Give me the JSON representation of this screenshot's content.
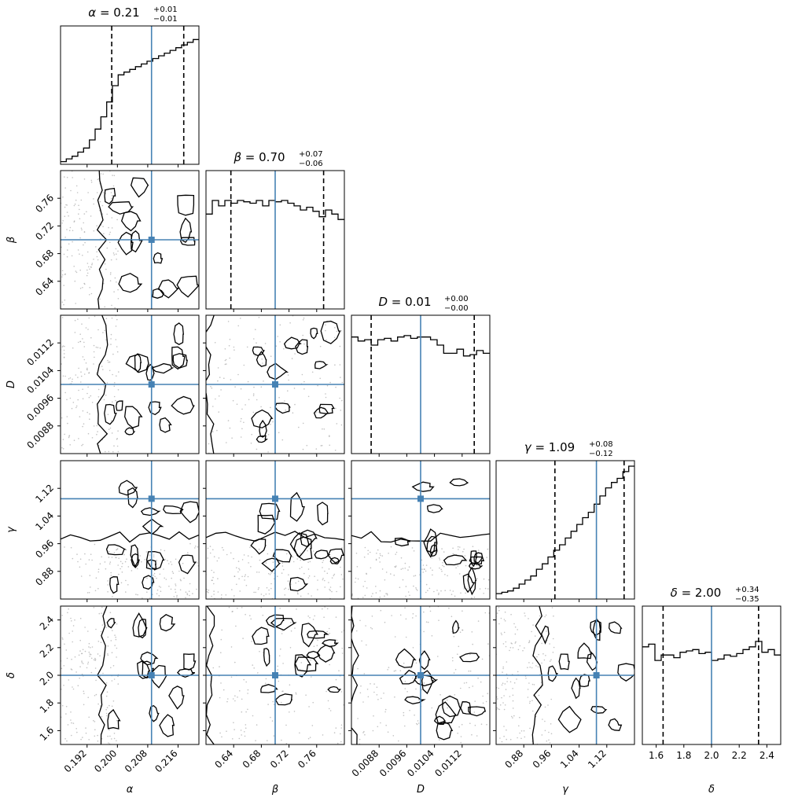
{
  "chart_data": {
    "type": "corner",
    "parameters": [
      {
        "symbol": "α",
        "median": 0.209,
        "best": 0.209,
        "q16": 0.1985,
        "q84": 0.2175,
        "range": [
          0.185,
          0.2215
        ],
        "ticks": [
          "0.192",
          "0.200",
          "0.208",
          "0.216"
        ],
        "tick_values": [
          0.192,
          0.2,
          0.208,
          0.216
        ],
        "title_value": "0.21",
        "title_plus": "+0.01",
        "title_minus": "−0.01"
      },
      {
        "symbol": "β",
        "median": 0.7,
        "best": 0.7,
        "q16": 0.636,
        "q84": 0.77,
        "range": [
          0.6,
          0.8
        ],
        "ticks": [
          "0.64",
          "0.68",
          "0.72",
          "0.76"
        ],
        "tick_values": [
          0.64,
          0.68,
          0.72,
          0.76
        ],
        "title_value": "0.70",
        "title_plus": "+0.07",
        "title_minus": "−0.06"
      },
      {
        "symbol": "D",
        "median": 0.01,
        "best": 0.01,
        "q16": 0.00857,
        "q84": 0.01155,
        "range": [
          0.008,
          0.012
        ],
        "ticks": [
          "0.0088",
          "0.0096",
          "0.0104",
          "0.0112"
        ],
        "tick_values": [
          0.0088,
          0.0096,
          0.0104,
          0.0112
        ],
        "title_value": "0.01",
        "title_plus": "+0.00",
        "title_minus": "−0.00"
      },
      {
        "symbol": "γ",
        "median": 1.09,
        "best": 1.09,
        "q16": 0.97,
        "q84": 1.17,
        "range": [
          0.8,
          1.2
        ],
        "ticks": [
          "0.88",
          "0.96",
          "1.04",
          "1.12"
        ],
        "tick_values": [
          0.88,
          0.96,
          1.04,
          1.12
        ],
        "title_value": "1.09",
        "title_plus": "+0.08",
        "title_minus": "−0.12"
      },
      {
        "symbol": "δ",
        "median": 2.0,
        "best": 2.0,
        "q16": 1.65,
        "q84": 2.34,
        "range": [
          1.5,
          2.5
        ],
        "ticks": [
          "1.6",
          "1.8",
          "2.0",
          "2.2",
          "2.4"
        ],
        "tick_values": [
          1.6,
          1.8,
          2.0,
          2.2,
          2.4
        ],
        "title_value": "2.00",
        "title_plus": "+0.34",
        "title_minus": "−0.35"
      }
    ],
    "histograms": [
      [
        0.02,
        0.04,
        0.06,
        0.09,
        0.12,
        0.18,
        0.26,
        0.35,
        0.46,
        0.58,
        0.66,
        0.68,
        0.7,
        0.72,
        0.74,
        0.76,
        0.78,
        0.8,
        0.82,
        0.84,
        0.86,
        0.88,
        0.9,
        0.92
      ],
      [
        0.7,
        0.8,
        0.76,
        0.8,
        0.78,
        0.8,
        0.79,
        0.78,
        0.8,
        0.76,
        0.8,
        0.79,
        0.8,
        0.78,
        0.76,
        0.73,
        0.75,
        0.72,
        0.68,
        0.73,
        0.7,
        0.66
      ],
      [
        0.86,
        0.83,
        0.84,
        0.8,
        0.84,
        0.85,
        0.83,
        0.86,
        0.87,
        0.85,
        0.86,
        0.86,
        0.84,
        0.8,
        0.74,
        0.74,
        0.77,
        0.72,
        0.73,
        0.76,
        0.74
      ],
      [
        0.04,
        0.05,
        0.06,
        0.08,
        0.11,
        0.14,
        0.17,
        0.22,
        0.26,
        0.31,
        0.36,
        0.4,
        0.45,
        0.5,
        0.55,
        0.6,
        0.64,
        0.7,
        0.76,
        0.82,
        0.86,
        0.89,
        0.94,
        0.98
      ],
      [
        0.72,
        0.74,
        0.62,
        0.66,
        0.66,
        0.64,
        0.68,
        0.69,
        0.7,
        0.67,
        0.68,
        0.62,
        0.63,
        0.66,
        0.65,
        0.67,
        0.7,
        0.72,
        0.76,
        0.68,
        0.7,
        0.66
      ]
    ],
    "line_color": "#4682b4",
    "quantile_line_style": "dashed"
  }
}
